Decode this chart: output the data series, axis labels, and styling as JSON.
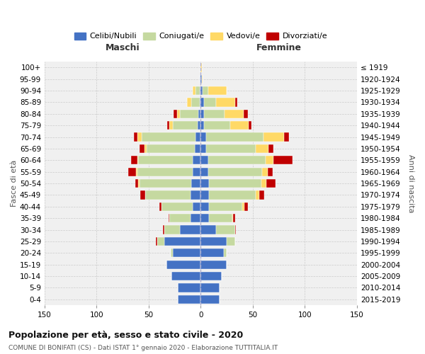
{
  "age_groups": [
    "0-4",
    "5-9",
    "10-14",
    "15-19",
    "20-24",
    "25-29",
    "30-34",
    "35-39",
    "40-44",
    "45-49",
    "50-54",
    "55-59",
    "60-64",
    "65-69",
    "70-74",
    "75-79",
    "80-84",
    "85-89",
    "90-94",
    "95-99",
    "100+"
  ],
  "birth_years": [
    "2015-2019",
    "2010-2014",
    "2005-2009",
    "2000-2004",
    "1995-1999",
    "1990-1994",
    "1985-1989",
    "1980-1984",
    "1975-1979",
    "1970-1974",
    "1965-1969",
    "1960-1964",
    "1955-1959",
    "1950-1954",
    "1945-1949",
    "1940-1944",
    "1935-1939",
    "1930-1934",
    "1925-1929",
    "1920-1924",
    "≤ 1919"
  ],
  "males": {
    "celibi": [
      22,
      22,
      28,
      33,
      27,
      35,
      20,
      10,
      8,
      10,
      9,
      8,
      8,
      6,
      5,
      3,
      2,
      1,
      1,
      1,
      0
    ],
    "coniugati": [
      0,
      0,
      0,
      0,
      2,
      7,
      15,
      20,
      30,
      43,
      50,
      53,
      52,
      46,
      52,
      24,
      18,
      8,
      4,
      0,
      0
    ],
    "vedovi": [
      0,
      0,
      0,
      0,
      0,
      0,
      0,
      0,
      0,
      0,
      1,
      1,
      1,
      2,
      4,
      3,
      3,
      4,
      3,
      0,
      0
    ],
    "divorziati": [
      0,
      0,
      0,
      0,
      0,
      1,
      1,
      1,
      2,
      5,
      3,
      8,
      6,
      5,
      3,
      2,
      3,
      0,
      0,
      0,
      0
    ]
  },
  "females": {
    "nubili": [
      18,
      18,
      20,
      25,
      22,
      25,
      15,
      8,
      8,
      8,
      8,
      7,
      7,
      5,
      5,
      3,
      3,
      3,
      2,
      1,
      0
    ],
    "coniugate": [
      0,
      0,
      0,
      0,
      3,
      8,
      18,
      22,
      32,
      45,
      50,
      52,
      55,
      48,
      55,
      25,
      20,
      12,
      5,
      0,
      0
    ],
    "vedove": [
      0,
      0,
      0,
      0,
      0,
      0,
      0,
      1,
      2,
      3,
      5,
      5,
      8,
      12,
      20,
      18,
      18,
      18,
      18,
      1,
      1
    ],
    "divorziate": [
      0,
      0,
      0,
      0,
      0,
      0,
      1,
      2,
      3,
      5,
      9,
      5,
      18,
      5,
      5,
      3,
      4,
      2,
      0,
      0,
      0
    ]
  },
  "colors": {
    "celibi": "#4472C4",
    "coniugati": "#C5D9A0",
    "vedovi": "#FFD966",
    "divorziati": "#C00000"
  },
  "legend_labels": [
    "Celibi/Nubili",
    "Coniugati/e",
    "Vedovi/e",
    "Divorziati/e"
  ],
  "title": "Popolazione per età, sesso e stato civile - 2020",
  "subtitle": "COMUNE DI BONIFATI (CS) - Dati ISTAT 1° gennaio 2020 - Elaborazione TUTTITALIA.IT",
  "xlabel_left": "Maschi",
  "xlabel_right": "Femmine",
  "ylabel_left": "Fasce di età",
  "ylabel_right": "Anni di nascita",
  "xlim": 150,
  "bg_color": "#f0f0f0"
}
